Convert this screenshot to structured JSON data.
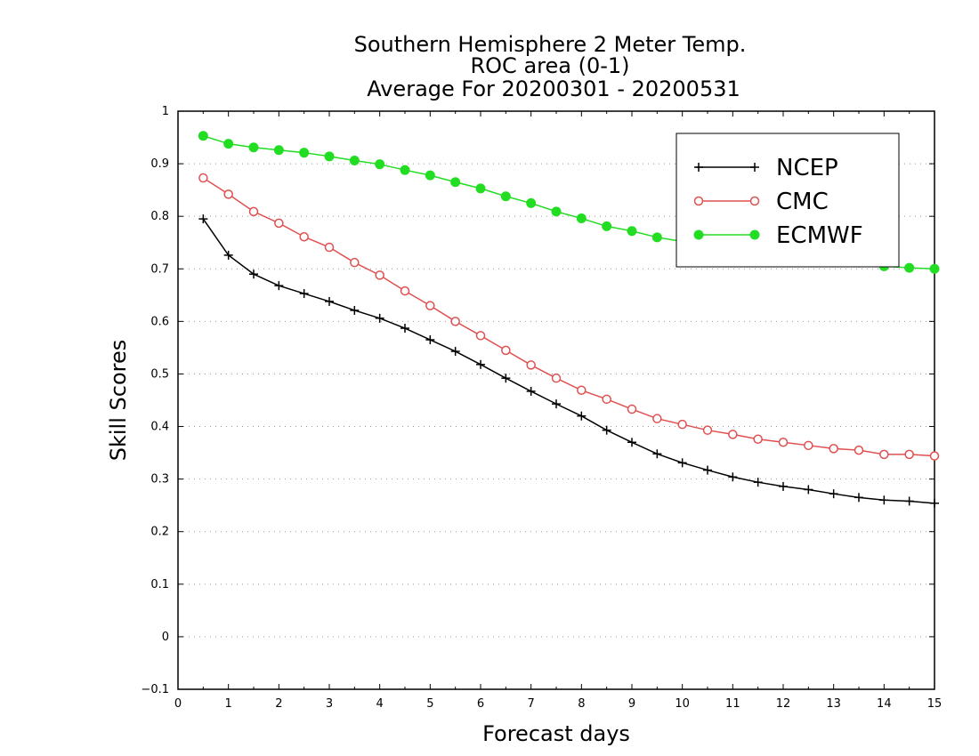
{
  "chart_data": {
    "type": "line",
    "title": [
      "Southern Hemisphere 2 Meter Temp.",
      "ROC area (0-1)",
      "Average For 20200301 - 20200531"
    ],
    "xlabel": "Forecast days",
    "ylabel": "Skill Scores",
    "xlim": [
      0,
      15
    ],
    "ylim": [
      -0.1,
      1
    ],
    "xticks": [
      0,
      1,
      2,
      3,
      4,
      5,
      6,
      7,
      8,
      9,
      10,
      11,
      12,
      13,
      14,
      15
    ],
    "xtick_labels": [
      "0",
      "1",
      "2",
      "3",
      "4",
      "5",
      "6",
      "7",
      "8",
      "9",
      "10",
      "11",
      "12",
      "13",
      "14",
      "15"
    ],
    "yticks": [
      -0.1,
      0,
      0.1,
      0.2,
      0.3,
      0.4,
      0.5,
      0.6,
      0.7,
      0.8,
      0.9,
      1
    ],
    "ytick_labels": [
      "−0.1",
      "0",
      "0.1",
      "0.2",
      "0.3",
      "0.4",
      "0.5",
      "0.6",
      "0.7",
      "0.8",
      "0.9",
      "1"
    ],
    "grid": "horizontal dotted",
    "legend_position": "top-right",
    "x": [
      0.5,
      1,
      1.5,
      2,
      2.5,
      3,
      3.5,
      4,
      4.5,
      5,
      5.5,
      6,
      6.5,
      7,
      7.5,
      8,
      8.5,
      9,
      9.5,
      10,
      10.5,
      11,
      11.5,
      12,
      12.5,
      13,
      13.5,
      14,
      14.5,
      15
    ],
    "series": [
      {
        "name": "NCEP",
        "color": "#000000",
        "marker": "plus",
        "values": [
          0.795,
          0.726,
          0.69,
          0.668,
          0.653,
          0.638,
          0.621,
          0.606,
          0.587,
          0.565,
          0.543,
          0.518,
          0.492,
          0.467,
          0.443,
          0.42,
          0.393,
          0.37,
          0.348,
          0.331,
          0.317,
          0.304,
          0.294,
          0.286,
          0.28,
          0.272,
          0.265,
          0.26,
          0.258,
          0.254
        ]
      },
      {
        "name": "CMC",
        "color": "#e05050",
        "marker": "open-circle",
        "values": [
          0.873,
          0.842,
          0.809,
          0.787,
          0.761,
          0.741,
          0.712,
          0.688,
          0.658,
          0.63,
          0.6,
          0.573,
          0.545,
          0.517,
          0.492,
          0.469,
          0.452,
          0.433,
          0.415,
          0.404,
          0.393,
          0.385,
          0.376,
          0.37,
          0.364,
          0.358,
          0.355,
          0.347,
          0.347,
          0.344
        ]
      },
      {
        "name": "ECMWF",
        "color": "#22dd22",
        "marker": "filled-circle",
        "values": [
          0.953,
          0.938,
          0.931,
          0.926,
          0.921,
          0.914,
          0.906,
          0.899,
          0.888,
          0.878,
          0.865,
          0.853,
          0.838,
          0.825,
          0.809,
          0.796,
          0.781,
          0.772,
          0.76,
          0.752,
          0.745,
          0.739,
          0.733,
          0.727,
          0.722,
          0.717,
          0.712,
          0.705,
          0.702,
          0.7
        ]
      }
    ]
  }
}
